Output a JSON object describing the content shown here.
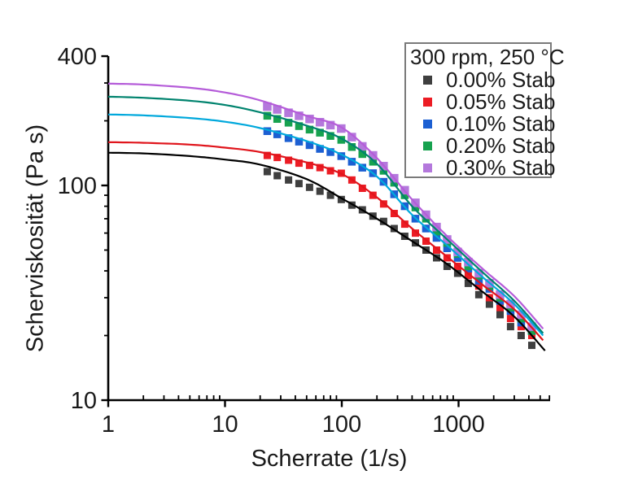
{
  "figure": {
    "background": "#ffffff",
    "text_color": "#1a1a1a",
    "axis_color": "#000000",
    "legend_border_color": "#7a7a7a"
  },
  "chart_data": {
    "type": "scatter",
    "x_label": "Scherrate (1/s)",
    "y_label": "Scherviskosität (Pa s)",
    "x_scale": "log",
    "y_scale": "log",
    "x_range": [
      1,
      6000
    ],
    "y_range": [
      10,
      400
    ],
    "grid": "off",
    "x_major_ticks": [
      1,
      10,
      100,
      1000
    ],
    "x_minor_ticks": [
      2,
      3,
      4,
      5,
      6,
      7,
      8,
      9,
      20,
      30,
      40,
      50,
      60,
      70,
      80,
      90,
      200,
      300,
      400,
      500,
      600,
      700,
      800,
      900,
      2000,
      3000,
      4000,
      5000,
      6000
    ],
    "y_major_ticks": [
      10,
      100,
      400
    ],
    "y_minor_ticks": [
      20,
      30,
      40,
      50,
      60,
      70,
      80,
      90,
      200,
      300
    ],
    "legend": {
      "title": "300 rpm, 250 °C",
      "position": "top-right"
    },
    "rates": [
      23,
      28,
      35,
      43,
      53,
      65,
      80,
      99,
      122,
      150,
      185,
      228,
      281,
      346,
      427,
      526,
      648,
      798,
      983,
      1211,
      1492,
      1838,
      2265,
      2790,
      3437,
      4235
    ],
    "series": [
      {
        "name": "0.00% Stab",
        "marker_color": "#3F3F3F",
        "line_color": "#000000",
        "marker_size": 9,
        "viscosity": [
          116,
          111,
          106,
          102,
          98,
          94,
          90,
          86,
          81,
          77,
          72,
          68,
          63,
          58,
          54,
          50,
          46,
          42,
          39,
          35,
          31,
          28,
          25,
          22,
          20,
          18
        ],
        "fit_line": [
          [
            1,
            142
          ],
          [
            2,
            141
          ],
          [
            5,
            137
          ],
          [
            10,
            132
          ],
          [
            20,
            125
          ],
          [
            50,
            107
          ],
          [
            100,
            87
          ],
          [
            200,
            70
          ],
          [
            400,
            55
          ],
          [
            800,
            43
          ],
          [
            1600,
            32
          ],
          [
            3000,
            24.5
          ],
          [
            5500,
            17
          ]
        ]
      },
      {
        "name": "0.05% Stab",
        "marker_color": "#EC1C24",
        "line_color": "#E0151C",
        "marker_size": 9,
        "viscosity": [
          138,
          135,
          131,
          127,
          124,
          121,
          117,
          114,
          106,
          97,
          90,
          82,
          74,
          66,
          60,
          55,
          50,
          46,
          42,
          38,
          34,
          30,
          27,
          24,
          22,
          20
        ],
        "fit_line": [
          [
            1,
            159
          ],
          [
            2,
            158
          ],
          [
            5,
            155
          ],
          [
            10,
            150
          ],
          [
            20,
            143
          ],
          [
            50,
            128
          ],
          [
            100,
            113
          ],
          [
            200,
            88
          ],
          [
            400,
            63
          ],
          [
            800,
            46.5
          ],
          [
            1600,
            34.5
          ],
          [
            3000,
            26.5
          ],
          [
            5300,
            19
          ]
        ]
      },
      {
        "name": "0.10% Stab",
        "marker_color": "#1C5FD2",
        "line_color": "#00A8DC",
        "marker_size": 9.5,
        "viscosity": [
          179,
          173,
          166,
          160,
          154,
          148,
          143,
          137,
          129,
          121,
          114,
          104,
          91,
          80,
          70,
          63,
          57,
          51,
          46,
          41,
          36,
          33,
          29,
          26,
          23,
          21
        ],
        "fit_line": [
          [
            1,
            214
          ],
          [
            2,
            212
          ],
          [
            5,
            206
          ],
          [
            10,
            198
          ],
          [
            20,
            185
          ],
          [
            50,
            161
          ],
          [
            100,
            139
          ],
          [
            200,
            110
          ],
          [
            400,
            73
          ],
          [
            800,
            52.5
          ],
          [
            1600,
            37.5
          ],
          [
            3000,
            28
          ],
          [
            5300,
            20
          ]
        ]
      },
      {
        "name": "0.20% Stab",
        "marker_color": "#17A24F",
        "line_color": "#00836E",
        "marker_size": 9.5,
        "viscosity": [
          211,
          204,
          196,
          189,
          182,
          176,
          170,
          163,
          151,
          140,
          129,
          117,
          103,
          90,
          79,
          70,
          61,
          54,
          48,
          42,
          38,
          34,
          30,
          27,
          24,
          21
        ],
        "fit_line": [
          [
            1,
            259
          ],
          [
            2,
            256
          ],
          [
            5,
            248
          ],
          [
            10,
            237
          ],
          [
            20,
            219
          ],
          [
            50,
            190
          ],
          [
            100,
            165
          ],
          [
            200,
            126
          ],
          [
            400,
            80
          ],
          [
            800,
            56
          ],
          [
            1600,
            39.5
          ],
          [
            3000,
            29
          ],
          [
            5300,
            20.5
          ]
        ]
      },
      {
        "name": "0.30% Stab",
        "marker_color": "#B478DC",
        "line_color": "#B55CD9",
        "marker_size": 10.5,
        "viscosity": [
          233,
          226,
          218,
          211,
          204,
          197,
          191,
          184,
          168,
          152,
          138,
          123,
          108,
          95,
          83,
          73,
          64,
          56,
          49,
          44,
          39,
          35,
          31,
          28,
          25,
          22
        ],
        "fit_line": [
          [
            1,
            298
          ],
          [
            2,
            295
          ],
          [
            5,
            285
          ],
          [
            10,
            271
          ],
          [
            20,
            249
          ],
          [
            50,
            211
          ],
          [
            100,
            186
          ],
          [
            200,
            134
          ],
          [
            400,
            86
          ],
          [
            800,
            58
          ],
          [
            1600,
            41
          ],
          [
            3000,
            30.5
          ],
          [
            5300,
            21.5
          ]
        ]
      }
    ]
  }
}
